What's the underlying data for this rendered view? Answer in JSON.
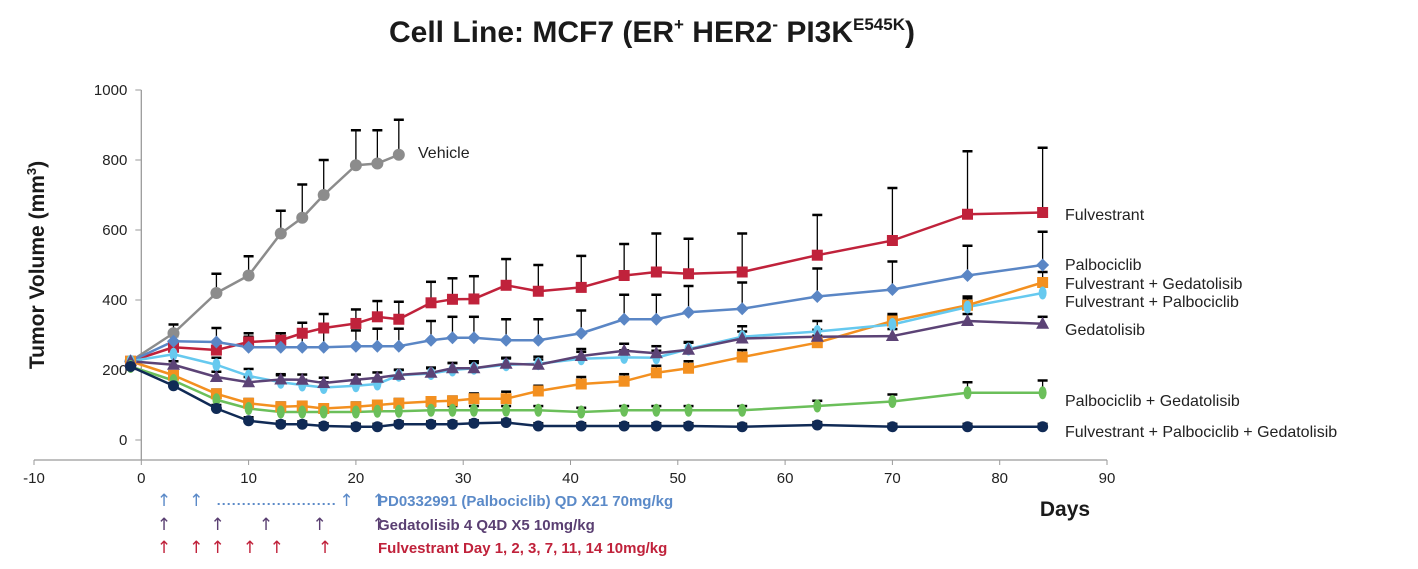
{
  "chart_data": {
    "type": "line",
    "title": "Cell Line: MCF7 (ER+ HER2- PI3KE545K)",
    "title_parts": {
      "main": "Cell Line: MCF7 (ER",
      "sup1": "+",
      "mid1": " HER2",
      "sup2": "-",
      "mid2": " PI3K",
      "sup3": "E545K",
      "end": ")"
    },
    "xlabel": "Days",
    "ylabel": "Tumor Volume (mm",
    "ylabel_sup": "3",
    "ylabel_end": ")",
    "xlim": [
      -10,
      90
    ],
    "ylim": [
      0,
      1000
    ],
    "xticks": [
      -10,
      0,
      10,
      20,
      30,
      40,
      50,
      60,
      70,
      80,
      90
    ],
    "yticks": [
      0,
      200,
      400,
      600,
      800,
      1000
    ],
    "grid": false,
    "legend": "inline labels at right end of each series",
    "series": [
      {
        "name": "Vehicle",
        "color": "#8c8c8c",
        "marker": "circle",
        "x": [
          -1,
          3,
          7,
          10,
          13,
          15,
          17,
          20,
          22,
          24
        ],
        "y": [
          225,
          305,
          420,
          470,
          590,
          635,
          700,
          785,
          790,
          815
        ],
        "err": [
          0,
          25,
          55,
          55,
          65,
          95,
          100,
          100,
          95,
          100
        ]
      },
      {
        "name": "Fulvestrant",
        "color": "#c0223b",
        "marker": "square",
        "x": [
          -1,
          3,
          7,
          10,
          13,
          15,
          17,
          20,
          22,
          24,
          27,
          29,
          31,
          34,
          37,
          41,
          45,
          48,
          51,
          56,
          63,
          70,
          77,
          84
        ],
        "y": [
          225,
          265,
          257,
          280,
          285,
          305,
          320,
          333,
          352,
          345,
          392,
          402,
          403,
          442,
          425,
          436,
          470,
          480,
          475,
          480,
          528,
          570,
          645,
          650
        ],
        "err": [
          0,
          12,
          10,
          15,
          20,
          30,
          40,
          40,
          45,
          50,
          60,
          60,
          65,
          75,
          75,
          90,
          90,
          110,
          100,
          110,
          115,
          150,
          180,
          185
        ]
      },
      {
        "name": "Palbociclib",
        "color": "#5a86c5",
        "marker": "diamond",
        "x": [
          -1,
          3,
          7,
          10,
          13,
          15,
          17,
          20,
          22,
          24,
          27,
          29,
          31,
          34,
          37,
          41,
          45,
          48,
          51,
          56,
          63,
          70,
          77,
          84
        ],
        "y": [
          225,
          282,
          280,
          265,
          265,
          265,
          265,
          268,
          268,
          268,
          285,
          292,
          292,
          285,
          285,
          305,
          345,
          345,
          365,
          375,
          410,
          430,
          470,
          500
        ],
        "err": [
          0,
          15,
          40,
          40,
          40,
          40,
          45,
          45,
          50,
          50,
          55,
          60,
          60,
          60,
          60,
          65,
          70,
          70,
          75,
          75,
          80,
          80,
          85,
          95
        ]
      },
      {
        "name": "Fulvestrant + Gedatolisib",
        "color": "#f39020",
        "marker": "square",
        "x": [
          -1,
          3,
          7,
          10,
          13,
          15,
          17,
          20,
          22,
          24,
          27,
          29,
          31,
          34,
          37,
          41,
          45,
          48,
          51,
          56,
          63,
          70,
          77,
          84
        ],
        "y": [
          225,
          185,
          132,
          105,
          95,
          97,
          90,
          95,
          100,
          105,
          110,
          112,
          118,
          118,
          140,
          160,
          168,
          192,
          205,
          237,
          278,
          340,
          385,
          450
        ],
        "err": [
          0,
          10,
          12,
          12,
          12,
          12,
          12,
          12,
          12,
          12,
          12,
          12,
          15,
          20,
          15,
          20,
          20,
          20,
          20,
          20,
          20,
          20,
          25,
          30
        ]
      },
      {
        "name": "Fulvestrant + Palbociclib",
        "color": "#66c9ef",
        "marker": "ellipse",
        "x": [
          -1,
          3,
          7,
          10,
          13,
          15,
          17,
          20,
          22,
          24,
          27,
          29,
          31,
          34,
          37,
          41,
          45,
          48,
          51,
          56,
          63,
          70,
          77,
          84
        ],
        "y": [
          225,
          245,
          215,
          183,
          165,
          157,
          150,
          155,
          160,
          185,
          190,
          200,
          205,
          215,
          218,
          232,
          236,
          235,
          260,
          295,
          310,
          330,
          380,
          420
        ],
        "err": [
          0,
          15,
          20,
          20,
          20,
          15,
          15,
          15,
          15,
          15,
          15,
          20,
          20,
          20,
          20,
          20,
          20,
          20,
          20,
          30,
          30,
          25,
          25,
          35
        ]
      },
      {
        "name": "Gedatolisib",
        "color": "#5c4376",
        "marker": "triangle",
        "x": [
          -1,
          3,
          7,
          10,
          13,
          15,
          17,
          20,
          22,
          24,
          27,
          29,
          31,
          34,
          37,
          41,
          45,
          48,
          51,
          56,
          63,
          70,
          77,
          84
        ],
        "y": [
          225,
          215,
          180,
          165,
          173,
          172,
          163,
          172,
          178,
          186,
          192,
          205,
          205,
          218,
          215,
          240,
          255,
          248,
          258,
          290,
          295,
          297,
          340,
          332
        ],
        "err": [
          0,
          10,
          15,
          15,
          15,
          15,
          15,
          15,
          15,
          15,
          15,
          15,
          15,
          15,
          15,
          20,
          20,
          20,
          20,
          20,
          20,
          20,
          20,
          20
        ]
      },
      {
        "name": "Palbociclib + Gedatolisib",
        "color": "#6bbf5a",
        "marker": "ellipse",
        "x": [
          -1,
          3,
          7,
          10,
          13,
          15,
          17,
          20,
          22,
          24,
          27,
          29,
          31,
          34,
          37,
          41,
          45,
          48,
          51,
          56,
          63,
          70,
          77,
          84
        ],
        "y": [
          210,
          170,
          115,
          90,
          80,
          80,
          80,
          80,
          82,
          82,
          85,
          85,
          85,
          85,
          85,
          80,
          85,
          85,
          85,
          85,
          97,
          110,
          135,
          135
        ],
        "err": [
          0,
          10,
          12,
          12,
          12,
          12,
          12,
          12,
          12,
          12,
          12,
          12,
          12,
          12,
          12,
          12,
          12,
          12,
          12,
          12,
          15,
          20,
          30,
          35
        ]
      },
      {
        "name": "Fulvestrant + Palbociclib + Gedatolisib",
        "color": "#102a55",
        "marker": "circle",
        "x": [
          -1,
          3,
          7,
          10,
          13,
          15,
          17,
          20,
          22,
          24,
          27,
          29,
          31,
          34,
          37,
          41,
          45,
          48,
          51,
          56,
          63,
          70,
          77,
          84
        ],
        "y": [
          210,
          155,
          90,
          55,
          45,
          45,
          40,
          38,
          38,
          45,
          45,
          45,
          48,
          50,
          40,
          40,
          40,
          40,
          40,
          38,
          43,
          38,
          38,
          38
        ],
        "err": [
          0,
          8,
          10,
          10,
          8,
          8,
          8,
          8,
          8,
          8,
          8,
          8,
          8,
          8,
          8,
          8,
          8,
          8,
          8,
          8,
          8,
          8,
          8,
          8
        ]
      }
    ],
    "annotations": {
      "dosing": [
        {
          "label": "PD0332991 (Palbociclib) QD X21 70mg/kg",
          "color": "#5b8ac8",
          "arrow_days": [
            1,
            4,
            18,
            21
          ],
          "dotted_between": [
            6,
            17
          ]
        },
        {
          "label": "Gedatolisib 4 Q4D X5 10mg/kg",
          "color": "#5a3f72",
          "arrow_days": [
            1,
            6,
            10.5,
            15.5,
            21
          ]
        },
        {
          "label": "Fulvestrant Day 1, 2, 3, 7, 11, 14 10mg/kg",
          "color": "#c0223b",
          "arrow_days": [
            1,
            4,
            6,
            9,
            11.5,
            16
          ]
        }
      ]
    }
  }
}
